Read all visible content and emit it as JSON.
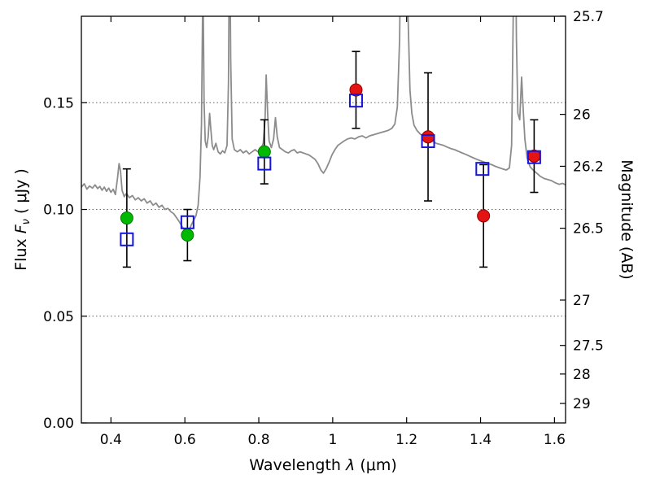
{
  "figure": {
    "background": "#ffffff",
    "frame_color": "#000000"
  },
  "axes": {
    "xlabel": {
      "word": "Wavelength",
      "symbol": " λ ",
      "unit": "(μm)"
    },
    "ylabel_left": {
      "word": "Flux",
      "symbol": " F",
      "sub": "ν",
      "unit": " ( μJy )"
    },
    "ylabel_right": "Magnitude (AB)"
  },
  "chart_data": {
    "type": "line+scatter",
    "title": "",
    "xlabel": "Wavelength λ (μm)",
    "ylabel_left": "Flux Fν ( μJy )",
    "ylabel_right": "Magnitude (AB)",
    "xlim": [
      0.32,
      1.63
    ],
    "ylim": [
      0,
      0.1905
    ],
    "x_ticks": [
      0.4,
      0.6,
      0.8,
      1.0,
      1.2,
      1.4,
      1.6
    ],
    "x_tick_labels": [
      "0.4",
      "0.6",
      "0.8",
      "1",
      "1.2",
      "1.4",
      "1.6"
    ],
    "y_ticks_flux": [
      0.0,
      0.05,
      0.1,
      0.15
    ],
    "y_tick_labels_flux": [
      "0.00",
      "0.05",
      "0.10",
      "0.15"
    ],
    "y_ticks_magnitude": [
      25.7,
      26,
      26.2,
      26.5,
      27,
      27.5,
      28,
      29
    ],
    "y_tick_labels_magnitude": [
      "25.7",
      "26",
      "26.2",
      "26.5",
      "27",
      "27.5",
      "28",
      "29"
    ],
    "magnitude_zero_point": 23.9,
    "grid": {
      "horizontal": true,
      "vertical": false,
      "style": "dotted",
      "color": "#666666"
    },
    "error_bar_color": "#000000",
    "series": [
      {
        "name": "model-spectrum",
        "type": "line",
        "color": "#8c8c8c",
        "width": 1.8,
        "points": [
          [
            0.32,
            0.1105
          ],
          [
            0.328,
            0.112
          ],
          [
            0.335,
            0.1095
          ],
          [
            0.342,
            0.111
          ],
          [
            0.35,
            0.11
          ],
          [
            0.357,
            0.1115
          ],
          [
            0.364,
            0.1098
          ],
          [
            0.37,
            0.1108
          ],
          [
            0.376,
            0.109
          ],
          [
            0.382,
            0.1105
          ],
          [
            0.388,
            0.1085
          ],
          [
            0.394,
            0.11
          ],
          [
            0.4,
            0.108
          ],
          [
            0.406,
            0.1095
          ],
          [
            0.412,
            0.107
          ],
          [
            0.418,
            0.115
          ],
          [
            0.422,
            0.1215
          ],
          [
            0.426,
            0.118
          ],
          [
            0.43,
            0.109
          ],
          [
            0.436,
            0.106
          ],
          [
            0.442,
            0.1075
          ],
          [
            0.45,
            0.1055
          ],
          [
            0.458,
            0.1065
          ],
          [
            0.466,
            0.1045
          ],
          [
            0.474,
            0.1055
          ],
          [
            0.482,
            0.104
          ],
          [
            0.49,
            0.105
          ],
          [
            0.498,
            0.103
          ],
          [
            0.506,
            0.104
          ],
          [
            0.514,
            0.102
          ],
          [
            0.522,
            0.103
          ],
          [
            0.53,
            0.101
          ],
          [
            0.538,
            0.102
          ],
          [
            0.546,
            0.1
          ],
          [
            0.554,
            0.1005
          ],
          [
            0.562,
            0.099
          ],
          [
            0.57,
            0.098
          ],
          [
            0.578,
            0.096
          ],
          [
            0.586,
            0.094
          ],
          [
            0.594,
            0.0915
          ],
          [
            0.6,
            0.09
          ],
          [
            0.606,
            0.089
          ],
          [
            0.612,
            0.0905
          ],
          [
            0.618,
            0.093
          ],
          [
            0.624,
            0.095
          ],
          [
            0.63,
            0.097
          ],
          [
            0.636,
            0.102
          ],
          [
            0.641,
            0.115
          ],
          [
            0.645,
            0.14
          ],
          [
            0.649,
            0.21
          ],
          [
            0.652,
            0.15
          ],
          [
            0.655,
            0.132
          ],
          [
            0.659,
            0.129
          ],
          [
            0.663,
            0.134
          ],
          [
            0.667,
            0.145
          ],
          [
            0.67,
            0.138
          ],
          [
            0.674,
            0.13
          ],
          [
            0.678,
            0.128
          ],
          [
            0.684,
            0.131
          ],
          [
            0.69,
            0.127
          ],
          [
            0.696,
            0.126
          ],
          [
            0.702,
            0.1275
          ],
          [
            0.708,
            0.1265
          ],
          [
            0.714,
            0.13
          ],
          [
            0.718,
            0.16
          ],
          [
            0.721,
            0.24
          ],
          [
            0.724,
            0.17
          ],
          [
            0.728,
            0.133
          ],
          [
            0.734,
            0.128
          ],
          [
            0.742,
            0.127
          ],
          [
            0.75,
            0.128
          ],
          [
            0.758,
            0.1265
          ],
          [
            0.766,
            0.1275
          ],
          [
            0.774,
            0.126
          ],
          [
            0.782,
            0.127
          ],
          [
            0.79,
            0.128
          ],
          [
            0.798,
            0.127
          ],
          [
            0.806,
            0.1285
          ],
          [
            0.812,
            0.131
          ],
          [
            0.817,
            0.142
          ],
          [
            0.82,
            0.163
          ],
          [
            0.824,
            0.145
          ],
          [
            0.828,
            0.132
          ],
          [
            0.834,
            0.129
          ],
          [
            0.84,
            0.133
          ],
          [
            0.845,
            0.143
          ],
          [
            0.85,
            0.134
          ],
          [
            0.856,
            0.129
          ],
          [
            0.864,
            0.128
          ],
          [
            0.872,
            0.127
          ],
          [
            0.88,
            0.1265
          ],
          [
            0.888,
            0.1275
          ],
          [
            0.896,
            0.128
          ],
          [
            0.904,
            0.1265
          ],
          [
            0.912,
            0.127
          ],
          [
            0.92,
            0.1265
          ],
          [
            0.928,
            0.126
          ],
          [
            0.936,
            0.1255
          ],
          [
            0.944,
            0.1245
          ],
          [
            0.952,
            0.1235
          ],
          [
            0.96,
            0.1215
          ],
          [
            0.968,
            0.1185
          ],
          [
            0.975,
            0.117
          ],
          [
            0.982,
            0.119
          ],
          [
            0.99,
            0.122
          ],
          [
            0.998,
            0.1255
          ],
          [
            1.006,
            0.128
          ],
          [
            1.014,
            0.13
          ],
          [
            1.022,
            0.131
          ],
          [
            1.03,
            0.132
          ],
          [
            1.04,
            0.133
          ],
          [
            1.05,
            0.1335
          ],
          [
            1.06,
            0.133
          ],
          [
            1.07,
            0.134
          ],
          [
            1.08,
            0.1345
          ],
          [
            1.09,
            0.1335
          ],
          [
            1.1,
            0.1345
          ],
          [
            1.11,
            0.135
          ],
          [
            1.12,
            0.1355
          ],
          [
            1.13,
            0.136
          ],
          [
            1.14,
            0.1365
          ],
          [
            1.15,
            0.137
          ],
          [
            1.16,
            0.138
          ],
          [
            1.168,
            0.14
          ],
          [
            1.175,
            0.148
          ],
          [
            1.181,
            0.18
          ],
          [
            1.186,
            0.26
          ],
          [
            1.192,
            0.28
          ],
          [
            1.198,
            0.26
          ],
          [
            1.204,
            0.19
          ],
          [
            1.209,
            0.156
          ],
          [
            1.214,
            0.145
          ],
          [
            1.22,
            0.1395
          ],
          [
            1.228,
            0.137
          ],
          [
            1.236,
            0.1355
          ],
          [
            1.244,
            0.1345
          ],
          [
            1.252,
            0.134
          ],
          [
            1.26,
            0.133
          ],
          [
            1.27,
            0.132
          ],
          [
            1.28,
            0.131
          ],
          [
            1.29,
            0.1305
          ],
          [
            1.3,
            0.13
          ],
          [
            1.31,
            0.1292
          ],
          [
            1.32,
            0.1285
          ],
          [
            1.33,
            0.128
          ],
          [
            1.34,
            0.1272
          ],
          [
            1.35,
            0.1265
          ],
          [
            1.36,
            0.1258
          ],
          [
            1.37,
            0.125
          ],
          [
            1.38,
            0.1242
          ],
          [
            1.39,
            0.1235
          ],
          [
            1.4,
            0.1228
          ],
          [
            1.41,
            0.1222
          ],
          [
            1.42,
            0.1215
          ],
          [
            1.43,
            0.121
          ],
          [
            1.44,
            0.1202
          ],
          [
            1.45,
            0.1196
          ],
          [
            1.46,
            0.119
          ],
          [
            1.47,
            0.1185
          ],
          [
            1.478,
            0.1195
          ],
          [
            1.484,
            0.13
          ],
          [
            1.489,
            0.2
          ],
          [
            1.493,
            0.26
          ],
          [
            1.497,
            0.18
          ],
          [
            1.501,
            0.145
          ],
          [
            1.506,
            0.142
          ],
          [
            1.511,
            0.162
          ],
          [
            1.515,
            0.148
          ],
          [
            1.52,
            0.133
          ],
          [
            1.526,
            0.124
          ],
          [
            1.534,
            0.12
          ],
          [
            1.542,
            0.1185
          ],
          [
            1.552,
            0.117
          ],
          [
            1.562,
            0.1155
          ],
          [
            1.572,
            0.1145
          ],
          [
            1.582,
            0.114
          ],
          [
            1.592,
            0.1135
          ],
          [
            1.602,
            0.1125
          ],
          [
            1.612,
            0.1118
          ],
          [
            1.622,
            0.1122
          ],
          [
            1.63,
            0.1115
          ]
        ]
      },
      {
        "name": "observed-photometry-optical",
        "type": "scatter",
        "marker": "circle",
        "color": "#00b900",
        "edge_color": "#007a00",
        "radius": 7.5,
        "points": [
          {
            "x": 0.443,
            "y": 0.096,
            "yerr": 0.023
          },
          {
            "x": 0.607,
            "y": 0.088,
            "yerr": 0.012
          },
          {
            "x": 0.815,
            "y": 0.127,
            "yerr": 0.015
          }
        ]
      },
      {
        "name": "observed-photometry-infrared",
        "type": "scatter",
        "marker": "circle",
        "color": "#e41414",
        "edge_color": "#8f0000",
        "radius": 7.5,
        "points": [
          {
            "x": 1.063,
            "y": 0.156,
            "yerr": 0.018
          },
          {
            "x": 1.258,
            "y": 0.134,
            "yerr": 0.03
          },
          {
            "x": 1.408,
            "y": 0.097,
            "yerr": 0.024
          },
          {
            "x": 1.545,
            "y": 0.125,
            "yerr": 0.017
          }
        ]
      },
      {
        "name": "model-photometry",
        "type": "scatter",
        "marker": "square-open",
        "color": "#1414dc",
        "size": 15,
        "points": [
          {
            "x": 0.443,
            "y": 0.086
          },
          {
            "x": 0.607,
            "y": 0.094
          },
          {
            "x": 0.815,
            "y": 0.1215
          },
          {
            "x": 1.063,
            "y": 0.151
          },
          {
            "x": 1.258,
            "y": 0.132
          },
          {
            "x": 1.405,
            "y": 0.119
          },
          {
            "x": 1.545,
            "y": 0.1245
          }
        ]
      }
    ]
  }
}
